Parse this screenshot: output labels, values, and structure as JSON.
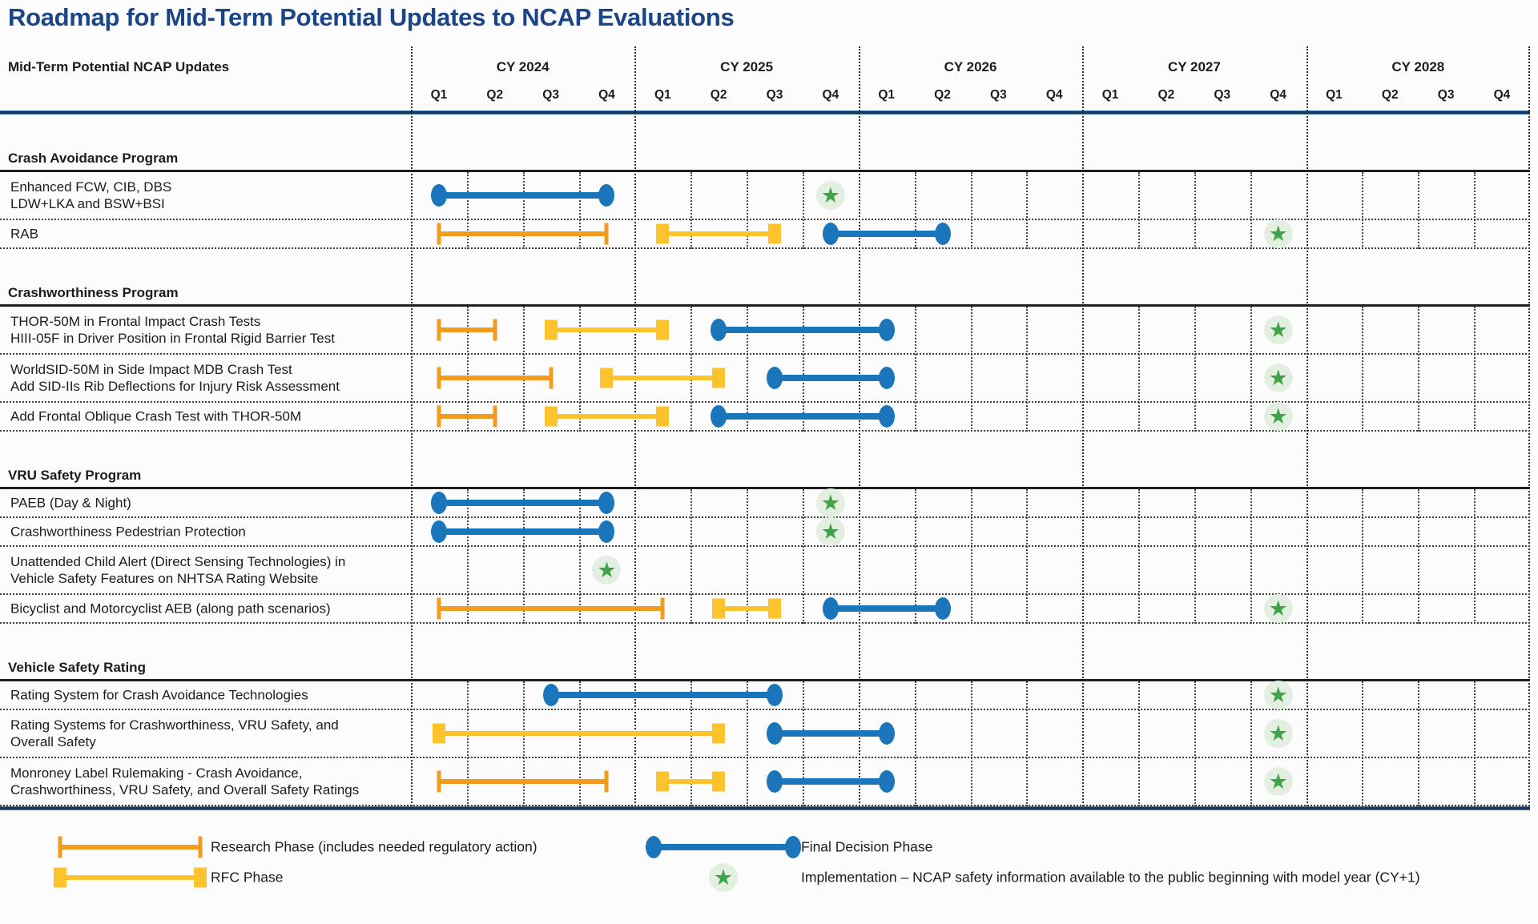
{
  "title": "Roadmap for Mid-Term Potential Updates to NCAP Evaluations",
  "header": {
    "row_label_column": "Mid-Term Potential NCAP Updates"
  },
  "chart_data": {
    "type": "gantt",
    "title": "Roadmap for Mid-Term Potential Updates to NCAP Evaluations",
    "x_axis": {
      "years": [
        {
          "label": "CY 2024",
          "quarters": [
            "Q1",
            "Q2",
            "Q3",
            "Q4"
          ]
        },
        {
          "label": "CY 2025",
          "quarters": [
            "Q1",
            "Q2",
            "Q3",
            "Q4"
          ]
        },
        {
          "label": "CY 2026",
          "quarters": [
            "Q1",
            "Q2",
            "Q3",
            "Q4"
          ]
        },
        {
          "label": "CY 2027",
          "quarters": [
            "Q1",
            "Q2",
            "Q3",
            "Q4"
          ]
        },
        {
          "label": "CY 2028",
          "quarters": [
            "Q1",
            "Q2",
            "Q3",
            "Q4"
          ]
        }
      ]
    },
    "sections": [
      {
        "title": "Crash Avoidance Program",
        "rows": [
          {
            "label_lines": [
              "Enhanced FCW, CIB, DBS",
              "LDW+LKA and BSW+BSI"
            ],
            "bars": [
              {
                "phase": "final",
                "from": "2024 Q1",
                "to": "2024 Q4"
              }
            ],
            "stars": [
              "2025 Q4"
            ]
          },
          {
            "label_lines": [
              "RAB"
            ],
            "bars": [
              {
                "phase": "research",
                "from": "2024 Q1",
                "to": "2024 Q4"
              },
              {
                "phase": "rfc",
                "from": "2025 Q1",
                "to": "2025 Q3"
              },
              {
                "phase": "final",
                "from": "2025 Q4",
                "to": "2026 Q2"
              }
            ],
            "stars": [
              "2027 Q4"
            ]
          }
        ]
      },
      {
        "title": "Crashworthiness Program",
        "rows": [
          {
            "label_lines": [
              "THOR-50M in Frontal Impact Crash Tests",
              "HIII-05F in Driver Position in Frontal Rigid Barrier Test"
            ],
            "bars": [
              {
                "phase": "research",
                "from": "2024 Q1",
                "to": "2024 Q2"
              },
              {
                "phase": "rfc",
                "from": "2024 Q3",
                "to": "2025 Q1"
              },
              {
                "phase": "final",
                "from": "2025 Q2",
                "to": "2026 Q1"
              }
            ],
            "stars": [
              "2027 Q4"
            ]
          },
          {
            "label_lines": [
              "WorldSID-50M in Side Impact MDB Crash Test",
              "Add SID-IIs Rib Deflections for Injury Risk Assessment"
            ],
            "bars": [
              {
                "phase": "research",
                "from": "2024 Q1",
                "to": "2024 Q3"
              },
              {
                "phase": "rfc",
                "from": "2024 Q4",
                "to": "2025 Q2"
              },
              {
                "phase": "final",
                "from": "2025 Q3",
                "to": "2026 Q1"
              }
            ],
            "stars": [
              "2027 Q4"
            ]
          },
          {
            "label_lines": [
              "Add Frontal Oblique Crash Test with THOR-50M"
            ],
            "bars": [
              {
                "phase": "research",
                "from": "2024 Q1",
                "to": "2024 Q2"
              },
              {
                "phase": "rfc",
                "from": "2024 Q3",
                "to": "2025 Q1"
              },
              {
                "phase": "final",
                "from": "2025 Q2",
                "to": "2026 Q1"
              }
            ],
            "stars": [
              "2027 Q4"
            ]
          }
        ]
      },
      {
        "title": "VRU Safety Program",
        "rows": [
          {
            "label_lines": [
              "PAEB (Day & Night)"
            ],
            "bars": [
              {
                "phase": "final",
                "from": "2024 Q1",
                "to": "2024 Q4"
              }
            ],
            "stars": [
              "2025 Q4"
            ]
          },
          {
            "label_lines": [
              "Crashworthiness Pedestrian Protection"
            ],
            "bars": [
              {
                "phase": "final",
                "from": "2024 Q1",
                "to": "2024 Q4"
              }
            ],
            "stars": [
              "2025 Q4"
            ]
          },
          {
            "label_lines": [
              "Unattended Child Alert (Direct Sensing Technologies) in",
              "Vehicle Safety Features on NHTSA Rating Website"
            ],
            "bars": [],
            "stars": [
              "2024 Q4"
            ]
          },
          {
            "label_lines": [
              "Bicyclist and Motorcyclist AEB (along path scenarios)"
            ],
            "bars": [
              {
                "phase": "research",
                "from": "2024 Q1",
                "to": "2025 Q1"
              },
              {
                "phase": "rfc",
                "from": "2025 Q2",
                "to": "2025 Q3"
              },
              {
                "phase": "final",
                "from": "2025 Q4",
                "to": "2026 Q2"
              }
            ],
            "stars": [
              "2027 Q4"
            ]
          }
        ]
      },
      {
        "title": "Vehicle Safety Rating",
        "rows": [
          {
            "label_lines": [
              "Rating System for Crash Avoidance Technologies"
            ],
            "bars": [
              {
                "phase": "final",
                "from": "2024 Q3",
                "to": "2025 Q3"
              }
            ],
            "stars": [
              "2027 Q4"
            ]
          },
          {
            "label_lines": [
              "Rating Systems for Crashworthiness, VRU Safety, and",
              "Overall Safety"
            ],
            "bars": [
              {
                "phase": "rfc",
                "from": "2024 Q1",
                "to": "2025 Q2"
              },
              {
                "phase": "final",
                "from": "2025 Q3",
                "to": "2026 Q1"
              }
            ],
            "stars": [
              "2027 Q4"
            ]
          },
          {
            "label_lines": [
              "Monroney Label Rulemaking - Crash Avoidance,",
              "Crashworthiness, VRU Safety, and Overall Safety Ratings"
            ],
            "bars": [
              {
                "phase": "research",
                "from": "2024 Q1",
                "to": "2024 Q4"
              },
              {
                "phase": "rfc",
                "from": "2025 Q1",
                "to": "2025 Q2"
              },
              {
                "phase": "final",
                "from": "2025 Q3",
                "to": "2026 Q1"
              }
            ],
            "stars": [
              "2027 Q4"
            ]
          }
        ]
      }
    ]
  },
  "legend": {
    "items": [
      {
        "key": "research",
        "label": "Research Phase (includes needed regulatory action)"
      },
      {
        "key": "rfc",
        "label": "RFC Phase"
      },
      {
        "key": "final",
        "label": "Final Decision Phase"
      },
      {
        "key": "implementation",
        "label": "Implementation – NCAP safety information available to the public beginning with model year (CY+1)"
      }
    ]
  },
  "colors": {
    "research_orange": "#f29c1f",
    "rfc_yellow": "#fdc32d",
    "final_blue": "#1b75bb",
    "star_green": "#3fa347",
    "star_halo": "#e3efe0",
    "title_navy": "#1b4586",
    "axis_line_navy": "#17375d"
  }
}
